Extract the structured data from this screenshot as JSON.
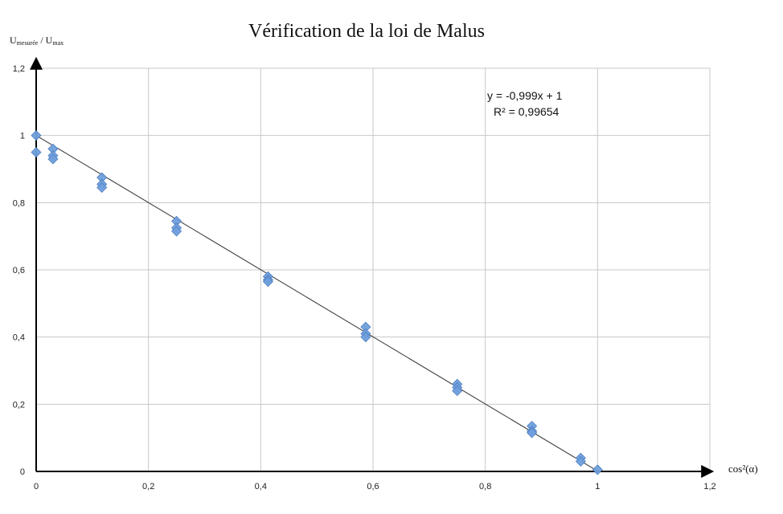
{
  "chart_data": {
    "type": "scatter",
    "title": "Vérification de la loi de Malus",
    "xlabel": "cos²(α)",
    "ylabel": {
      "base": "U",
      "sub1": "mesurée",
      "separator": " / ",
      "base2": "U",
      "sub2": "max"
    },
    "xlim": [
      0,
      1.2
    ],
    "ylim": [
      0,
      1.2
    ],
    "x_ticks": [
      "0",
      "0,2",
      "0,4",
      "0,6",
      "0,8",
      "1",
      "1,2"
    ],
    "y_ticks": [
      "0",
      "0,2",
      "0,4",
      "0,6",
      "0,8",
      "1",
      "1,2"
    ],
    "x_tick_values": [
      0,
      0.2,
      0.4,
      0.6,
      0.8,
      1.0,
      1.2
    ],
    "y_tick_values": [
      0,
      0.2,
      0.4,
      0.6,
      0.8,
      1.0,
      1.2
    ],
    "grid": true,
    "marker_color": "#6f9fdc",
    "marker_stroke": "#4f7fc0",
    "line_color": "#333333",
    "points": [
      {
        "x": 0,
        "y": 1.0
      },
      {
        "x": 0,
        "y": 0.95
      },
      {
        "x": 0.03,
        "y": 0.96
      },
      {
        "x": 0.03,
        "y": 0.94
      },
      {
        "x": 0.03,
        "y": 0.93
      },
      {
        "x": 0.117,
        "y": 0.875
      },
      {
        "x": 0.117,
        "y": 0.855
      },
      {
        "x": 0.117,
        "y": 0.845
      },
      {
        "x": 0.25,
        "y": 0.745
      },
      {
        "x": 0.25,
        "y": 0.725
      },
      {
        "x": 0.25,
        "y": 0.715
      },
      {
        "x": 0.413,
        "y": 0.58
      },
      {
        "x": 0.413,
        "y": 0.57
      },
      {
        "x": 0.413,
        "y": 0.565
      },
      {
        "x": 0.587,
        "y": 0.43
      },
      {
        "x": 0.587,
        "y": 0.41
      },
      {
        "x": 0.587,
        "y": 0.4
      },
      {
        "x": 0.75,
        "y": 0.26
      },
      {
        "x": 0.75,
        "y": 0.25
      },
      {
        "x": 0.75,
        "y": 0.24
      },
      {
        "x": 0.883,
        "y": 0.135
      },
      {
        "x": 0.883,
        "y": 0.12
      },
      {
        "x": 0.883,
        "y": 0.115
      },
      {
        "x": 0.97,
        "y": 0.04
      },
      {
        "x": 0.97,
        "y": 0.03
      },
      {
        "x": 1.0,
        "y": 0.005
      }
    ],
    "trendline": {
      "slope": -0.999,
      "intercept": 1,
      "x_range": [
        0,
        1.0
      ],
      "equation": "y = -0,999x + 1",
      "r_squared": "R² = 0,99654"
    }
  }
}
